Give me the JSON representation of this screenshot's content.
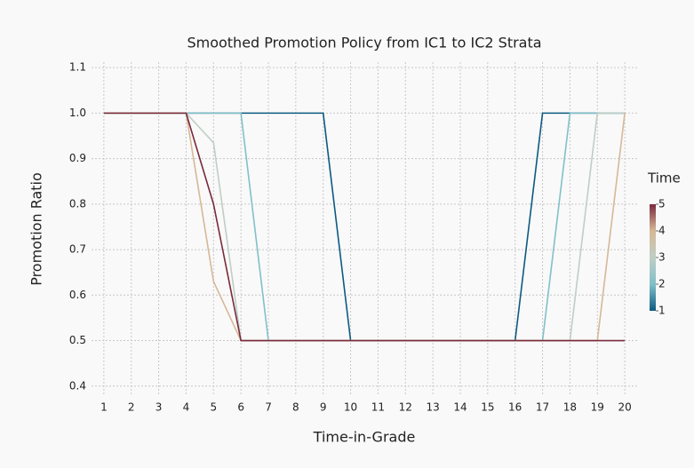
{
  "chart_data": {
    "type": "line",
    "title": "Smoothed Promotion Policy from IC1 to IC2 Strata",
    "x_label": "Time-in-Grade",
    "y_label": "Promotion Ratio",
    "x": [
      1,
      2,
      3,
      4,
      5,
      6,
      7,
      8,
      9,
      10,
      11,
      12,
      13,
      14,
      15,
      16,
      17,
      18,
      19,
      20
    ],
    "series": [
      {
        "color": "#0c5a80",
        "values": [
          1,
          1,
          1,
          1,
          1,
          1,
          1,
          1,
          1,
          0.5,
          0.5,
          0.5,
          0.5,
          0.5,
          0.5,
          0.5,
          1,
          1,
          1,
          1
        ]
      },
      {
        "color": "#82c0c9",
        "values": [
          1,
          1,
          1,
          1,
          1,
          1,
          0.5,
          0.5,
          0.5,
          0.5,
          0.5,
          0.5,
          0.5,
          0.5,
          0.5,
          0.5,
          0.5,
          1,
          1,
          1
        ]
      },
      {
        "color": "#bfcec4",
        "values": [
          1,
          1,
          1,
          1,
          0.935,
          0.5,
          0.5,
          0.5,
          0.5,
          0.5,
          0.5,
          0.5,
          0.5,
          0.5,
          0.5,
          0.5,
          0.5,
          0.5,
          1,
          1
        ]
      },
      {
        "color": "#d6b897",
        "values": [
          1,
          1,
          1,
          1,
          0.63,
          0.5,
          0.5,
          0.5,
          0.5,
          0.5,
          0.5,
          0.5,
          0.5,
          0.5,
          0.5,
          0.5,
          0.5,
          0.5,
          0.5,
          1
        ]
      },
      {
        "color": "#7a2a3c",
        "values": [
          1,
          1,
          1,
          1,
          0.8,
          0.5,
          0.5,
          0.5,
          0.5,
          0.5,
          0.5,
          0.5,
          0.5,
          0.5,
          0.5,
          0.5,
          0.5,
          0.5,
          0.5,
          0.5
        ]
      }
    ],
    "xlim": [
      0.55,
      20.45
    ],
    "xticks": [
      1,
      2,
      3,
      4,
      5,
      6,
      7,
      8,
      9,
      10,
      11,
      12,
      13,
      14,
      15,
      16,
      17,
      18,
      19,
      20
    ],
    "ylim": [
      0.38,
      1.112
    ],
    "yticks": [
      0.4,
      0.5,
      0.6,
      0.7,
      0.8,
      0.9,
      {
        "value": 1,
        "label": "1.0"
      },
      1.1
    ],
    "grid": true,
    "colorbar": {
      "title": "Time",
      "range": [
        1,
        5
      ],
      "ticks": [
        1,
        2,
        3,
        4,
        5
      ]
    }
  }
}
